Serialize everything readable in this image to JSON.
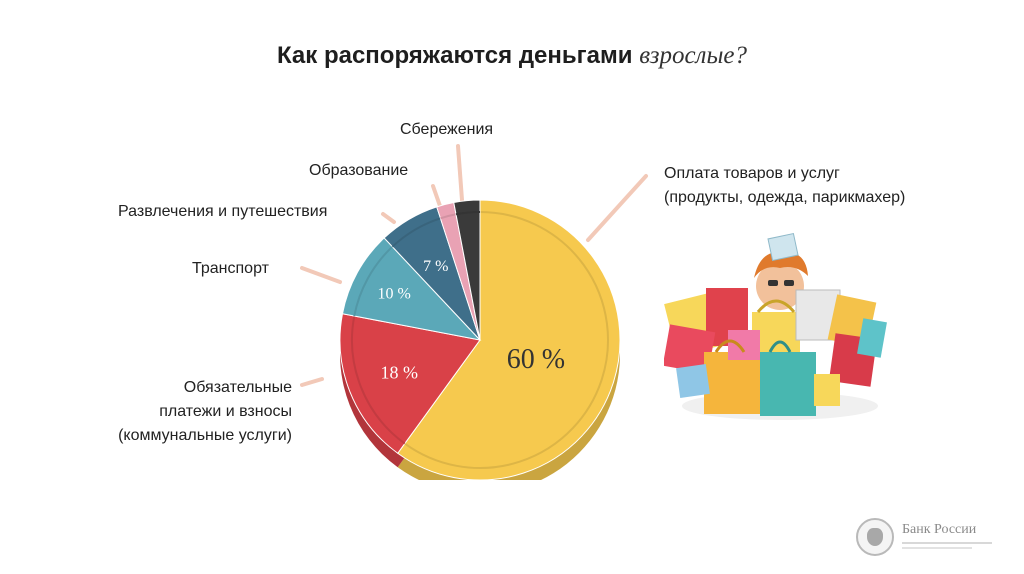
{
  "title": {
    "main": "Как распоряжаются деньгами",
    "emphasis": "взрослые?"
  },
  "chart_data": {
    "type": "pie",
    "title": "Как распоряжаются деньгами взрослые?",
    "slices": [
      {
        "label": "Оплата товаров и услуг (продукты, одежда, парикмахер)",
        "value": 60,
        "value_label": "60 %",
        "color": "#f6c94e"
      },
      {
        "label": "Обязательные платежи и взносы (коммунальные услуги)",
        "value": 18,
        "value_label": "18 %",
        "color": "#d94148"
      },
      {
        "label": "Транспорт",
        "value": 10,
        "value_label": "10 %",
        "color": "#5ba8b8"
      },
      {
        "label": "Развлечения и путешествия",
        "value": 7,
        "value_label": "7 %",
        "color": "#3f6f8a"
      },
      {
        "label": "Образование",
        "value": 2,
        "value_label": "",
        "color": "#e9a2b4"
      },
      {
        "label": "Сбережения",
        "value": 3,
        "value_label": "",
        "color": "#3a3a3a"
      }
    ]
  },
  "labels": {
    "savings": "Сбережения",
    "education": "Образование",
    "entertainment": "Развлечения и путешествия",
    "transport": "Транспорт",
    "mandatory_1": "Обязательные",
    "mandatory_2": "платежи и взносы",
    "mandatory_3": "(коммунальные услуги)",
    "goods_1": "Оплата товаров и услуг",
    "goods_2": "(продукты, одежда, парикмахер)"
  },
  "footer": {
    "bank_name": "Банк России"
  },
  "illustration": {
    "icon": "shopping-bags-illustration"
  }
}
